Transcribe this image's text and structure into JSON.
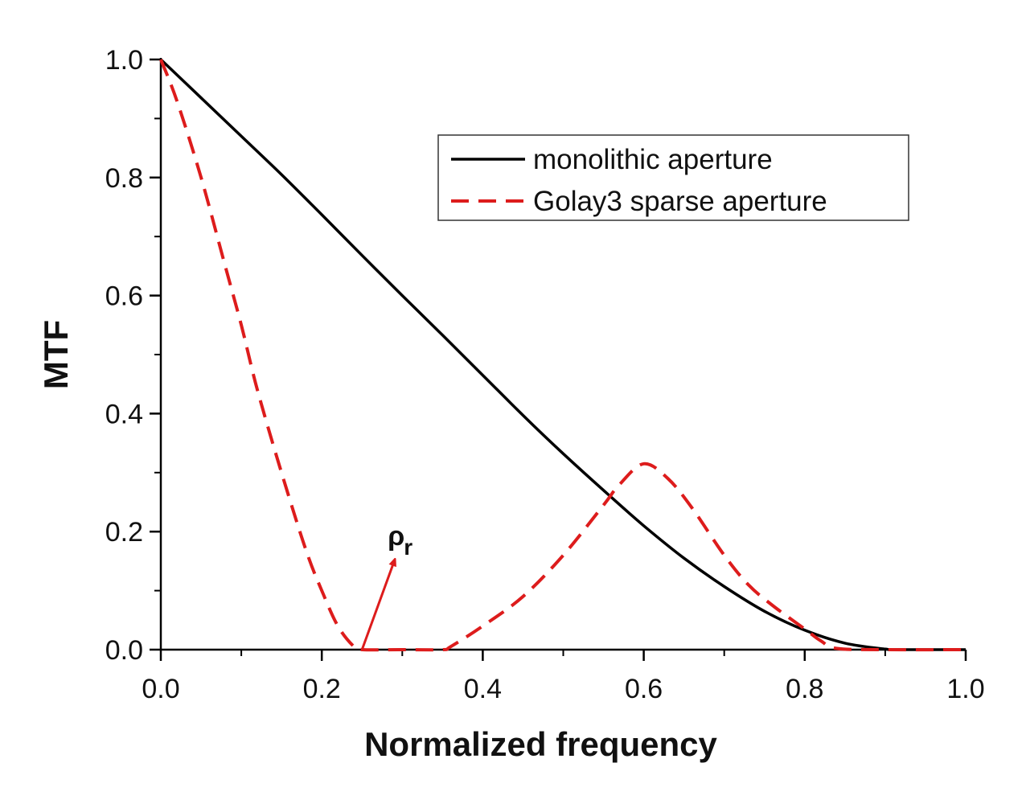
{
  "chart_data": {
    "type": "line",
    "title": "",
    "xlabel": "Normalized frequency",
    "ylabel": "MTF",
    "xlim": [
      0.0,
      1.0
    ],
    "ylim": [
      0.0,
      1.0
    ],
    "xticks": [
      "0.0",
      "0.2",
      "0.4",
      "0.6",
      "0.8",
      "1.0"
    ],
    "yticks": [
      "0.0",
      "0.2",
      "0.4",
      "0.6",
      "0.8",
      "1.0"
    ],
    "grid": false,
    "legend_position": "top-right",
    "series": [
      {
        "name": "monolithic aperture",
        "color": "#000000",
        "style": "solid",
        "x": [
          0.0,
          0.05,
          0.1,
          0.15,
          0.2,
          0.25,
          0.3,
          0.35,
          0.4,
          0.45,
          0.5,
          0.55,
          0.6,
          0.65,
          0.7,
          0.75,
          0.8,
          0.85,
          0.9,
          0.92,
          1.0
        ],
        "y": [
          1.0,
          0.935,
          0.87,
          0.805,
          0.737,
          0.668,
          0.6,
          0.533,
          0.465,
          0.397,
          0.332,
          0.27,
          0.21,
          0.155,
          0.107,
          0.065,
          0.033,
          0.011,
          0.001,
          0.0,
          0.0
        ]
      },
      {
        "name": "Golay3 sparse aperture",
        "color": "#dd1c1c",
        "style": "dashed",
        "x": [
          0.0,
          0.02,
          0.05,
          0.08,
          0.1,
          0.12,
          0.15,
          0.18,
          0.2,
          0.22,
          0.24,
          0.25,
          0.3,
          0.35,
          0.36,
          0.4,
          0.45,
          0.5,
          0.55,
          0.57,
          0.6,
          0.63,
          0.66,
          0.7,
          0.73,
          0.76,
          0.8,
          0.82,
          0.84,
          0.9,
          1.0
        ],
        "y": [
          1.0,
          0.93,
          0.8,
          0.65,
          0.55,
          0.44,
          0.3,
          0.17,
          0.1,
          0.04,
          0.005,
          0.0,
          0.0,
          0.0,
          0.005,
          0.04,
          0.09,
          0.16,
          0.245,
          0.28,
          0.315,
          0.29,
          0.24,
          0.16,
          0.11,
          0.075,
          0.035,
          0.015,
          0.002,
          0.0,
          0.0
        ]
      }
    ],
    "annotations": [
      {
        "symbol": "ρ",
        "subscript": "r",
        "arrow_from": [
          0.25,
          0.0
        ],
        "arrow_to": [
          0.29,
          0.15
        ]
      }
    ]
  }
}
